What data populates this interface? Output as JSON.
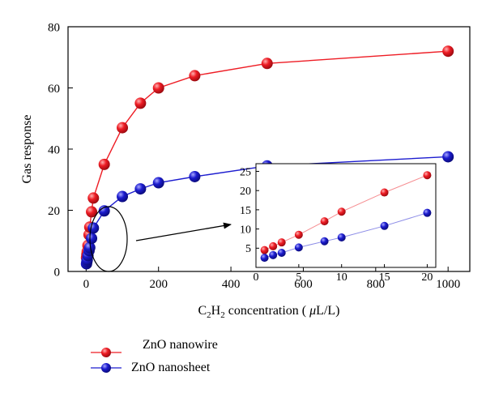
{
  "chart_data": [
    {
      "type": "line",
      "ylabel": "Gas response",
      "xlabel_parts": [
        "C",
        "2",
        "H",
        "2",
        " concentration ( ",
        "μ",
        "L/L)"
      ],
      "xlim": [
        -50,
        1060
      ],
      "ylim": [
        0,
        80
      ],
      "xticks": [
        0,
        200,
        400,
        600,
        800,
        1000
      ],
      "yticks": [
        0,
        20,
        40,
        60,
        80
      ],
      "grid": false,
      "legend_position": "below plot, left",
      "series": [
        {
          "name": "ZnO nanowire",
          "color": "#ee1c24",
          "x": [
            1,
            2,
            3,
            5,
            8,
            10,
            15,
            20,
            50,
            100,
            150,
            200,
            300,
            500,
            1000
          ],
          "y": [
            4.5,
            5.5,
            6.5,
            8.5,
            12,
            14.5,
            19.5,
            24,
            35,
            47,
            55,
            60,
            64,
            68,
            72
          ]
        },
        {
          "name": "ZnO nanosheet",
          "color": "#1c1ccf",
          "x": [
            1,
            2,
            3,
            5,
            8,
            10,
            15,
            20,
            50,
            100,
            150,
            200,
            300,
            500,
            1000
          ],
          "y": [
            2.5,
            3.2,
            3.8,
            5.2,
            6.8,
            7.8,
            10.8,
            14.2,
            19.8,
            24.5,
            27,
            29,
            31,
            34.5,
            37.5
          ]
        }
      ]
    },
    {
      "type": "line",
      "role": "inset",
      "xlim": [
        0,
        21
      ],
      "ylim": [
        0,
        27
      ],
      "xticks": [
        0,
        5,
        10,
        15,
        20
      ],
      "yticks": [
        5,
        10,
        15,
        20,
        25
      ],
      "series": [
        {
          "name": "ZnO nanowire",
          "color": "#ee1c24",
          "x": [
            1,
            2,
            3,
            5,
            8,
            10,
            15,
            20
          ],
          "y": [
            4.5,
            5.5,
            6.5,
            8.5,
            12,
            14.5,
            19.5,
            24
          ]
        },
        {
          "name": "ZnO nanosheet",
          "color": "#1c1ccf",
          "x": [
            1,
            2,
            3,
            5,
            8,
            10,
            15,
            20
          ],
          "y": [
            2.5,
            3.2,
            3.8,
            5.2,
            6.8,
            7.8,
            10.8,
            14.2
          ]
        }
      ]
    }
  ]
}
